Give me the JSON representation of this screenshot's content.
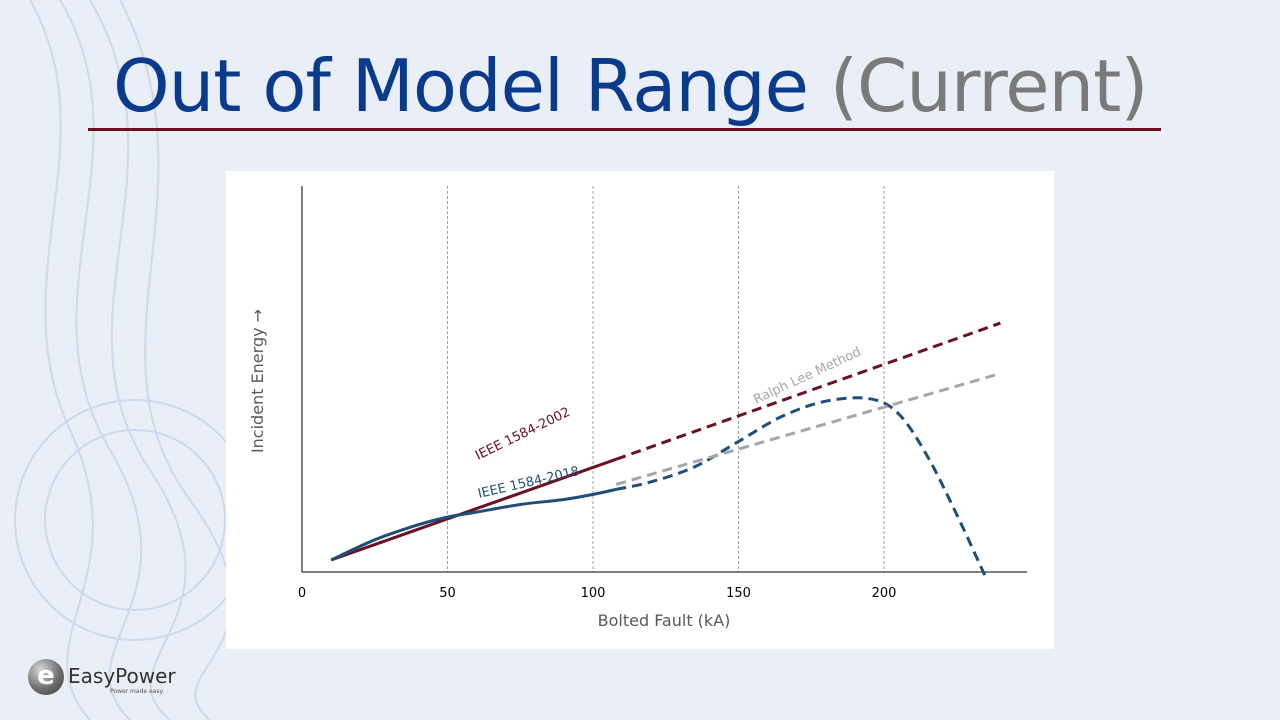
{
  "slide": {
    "title_main": "Out of Model Range",
    "title_sub": "(Current)"
  },
  "colors": {
    "title_blue": "#0a3a8c",
    "title_gray": "#7a7a7a",
    "rule": "#6b1222",
    "ieee2002": "#6b1222",
    "ieee2018": "#1f4e79",
    "ralph_lee": "#a6a6a6"
  },
  "logo": {
    "name": "EasyPower",
    "tagline": "Power made easy.",
    "icon": "e-logo-icon"
  },
  "chart_data": {
    "type": "line",
    "xlabel": "Bolted Fault (kA)",
    "ylabel": "Incident Energy →",
    "xlim": [
      0,
      250
    ],
    "ylim": [
      0,
      100
    ],
    "x_ticks": [
      0,
      50,
      100,
      150,
      200
    ],
    "x_gridlines": [
      50,
      100,
      150,
      200
    ],
    "y_ticks_shown": false,
    "grid": "vertical dashed",
    "series": [
      {
        "name": "IEEE 1584-2002",
        "color": "#6b1222",
        "solid": {
          "x": [
            10,
            108
          ],
          "y": [
            2,
            42
          ]
        },
        "dashed": {
          "x": [
            108,
            240
          ],
          "y": [
            42,
            96
          ]
        }
      },
      {
        "name": "IEEE 1584-2018",
        "color": "#1f4e79",
        "solid": {
          "x": [
            10,
            25,
            40,
            50,
            60,
            75,
            90,
            100,
            108
          ],
          "y": [
            2,
            10,
            16,
            19,
            21,
            24,
            26,
            28,
            30
          ]
        },
        "dashed": {
          "x": [
            108,
            120,
            135,
            150,
            165,
            180,
            195,
            205,
            215,
            225,
            235
          ],
          "y": [
            30,
            33,
            39,
            49,
            59,
            65,
            66,
            60,
            43,
            20,
            -5
          ]
        }
      },
      {
        "name": "Ralph Lee Method",
        "color": "#a6a6a6",
        "solid": null,
        "dashed": {
          "x": [
            108,
            240
          ],
          "y": [
            32,
            76
          ]
        }
      }
    ]
  }
}
